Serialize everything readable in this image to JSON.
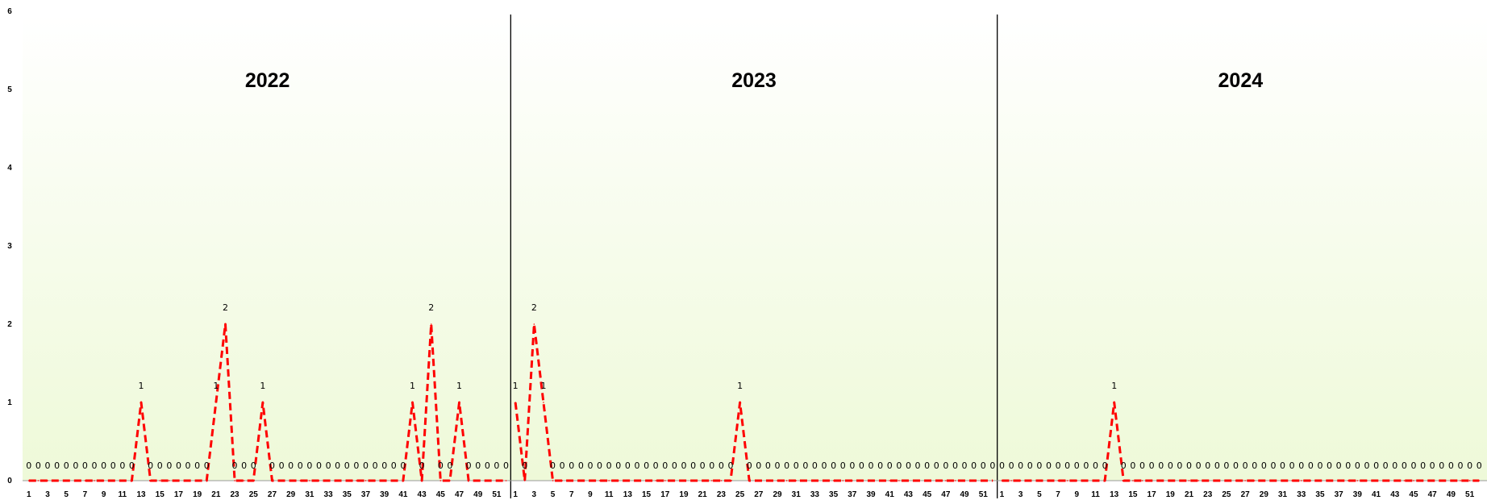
{
  "chart_data": {
    "type": "line",
    "yticks": [
      0,
      1,
      2,
      3,
      4,
      5,
      6
    ],
    "ylim": [
      0,
      6
    ],
    "x_tick_step": 2,
    "weeks_per_panel": 52,
    "series_style": {
      "color": "#ff0000",
      "dash": "dashed"
    },
    "background_gradient": {
      "top": "#ffffff",
      "bottom": "#eef9d8"
    },
    "panels": [
      {
        "title": "2022",
        "weeks": [
          1,
          2,
          3,
          4,
          5,
          6,
          7,
          8,
          9,
          10,
          11,
          12,
          13,
          14,
          15,
          16,
          17,
          18,
          19,
          20,
          21,
          22,
          23,
          24,
          25,
          26,
          27,
          28,
          29,
          30,
          31,
          32,
          33,
          34,
          35,
          36,
          37,
          38,
          39,
          40,
          41,
          42,
          43,
          44,
          45,
          46,
          47,
          48,
          49,
          50,
          51,
          52
        ],
        "values": [
          0,
          0,
          0,
          0,
          0,
          0,
          0,
          0,
          0,
          0,
          0,
          0,
          1,
          0,
          0,
          0,
          0,
          0,
          0,
          0,
          1,
          2,
          0,
          0,
          0,
          1,
          0,
          0,
          0,
          0,
          0,
          0,
          0,
          0,
          0,
          0,
          0,
          0,
          0,
          0,
          0,
          1,
          0,
          2,
          0,
          0,
          1,
          0,
          0,
          0,
          0,
          0
        ]
      },
      {
        "title": "2023",
        "weeks": [
          1,
          2,
          3,
          4,
          5,
          6,
          7,
          8,
          9,
          10,
          11,
          12,
          13,
          14,
          15,
          16,
          17,
          18,
          19,
          20,
          21,
          22,
          23,
          24,
          25,
          26,
          27,
          28,
          29,
          30,
          31,
          32,
          33,
          34,
          35,
          36,
          37,
          38,
          39,
          40,
          41,
          42,
          43,
          44,
          45,
          46,
          47,
          48,
          49,
          50,
          51,
          52
        ],
        "values": [
          1,
          0,
          2,
          1,
          0,
          0,
          0,
          0,
          0,
          0,
          0,
          0,
          0,
          0,
          0,
          0,
          0,
          0,
          0,
          0,
          0,
          0,
          0,
          0,
          1,
          0,
          0,
          0,
          0,
          0,
          0,
          0,
          0,
          0,
          0,
          0,
          0,
          0,
          0,
          0,
          0,
          0,
          0,
          0,
          0,
          0,
          0,
          0,
          0,
          0,
          0,
          0
        ]
      },
      {
        "title": "2024",
        "weeks": [
          1,
          2,
          3,
          4,
          5,
          6,
          7,
          8,
          9,
          10,
          11,
          12,
          13,
          14,
          15,
          16,
          17,
          18,
          19,
          20,
          21,
          22,
          23,
          24,
          25,
          26,
          27,
          28,
          29,
          30,
          31,
          32,
          33,
          34,
          35,
          36,
          37,
          38,
          39,
          40,
          41,
          42,
          43,
          44,
          45,
          46,
          47,
          48,
          49,
          50,
          51,
          52
        ],
        "values": [
          0,
          0,
          0,
          0,
          0,
          0,
          0,
          0,
          0,
          0,
          0,
          0,
          1,
          0,
          0,
          0,
          0,
          0,
          0,
          0,
          0,
          0,
          0,
          0,
          0,
          0,
          0,
          0,
          0,
          0,
          0,
          0,
          0,
          0,
          0,
          0,
          0,
          0,
          0,
          0,
          0,
          0,
          0,
          0,
          0,
          0,
          0,
          0,
          0,
          0,
          0,
          0
        ]
      }
    ]
  }
}
